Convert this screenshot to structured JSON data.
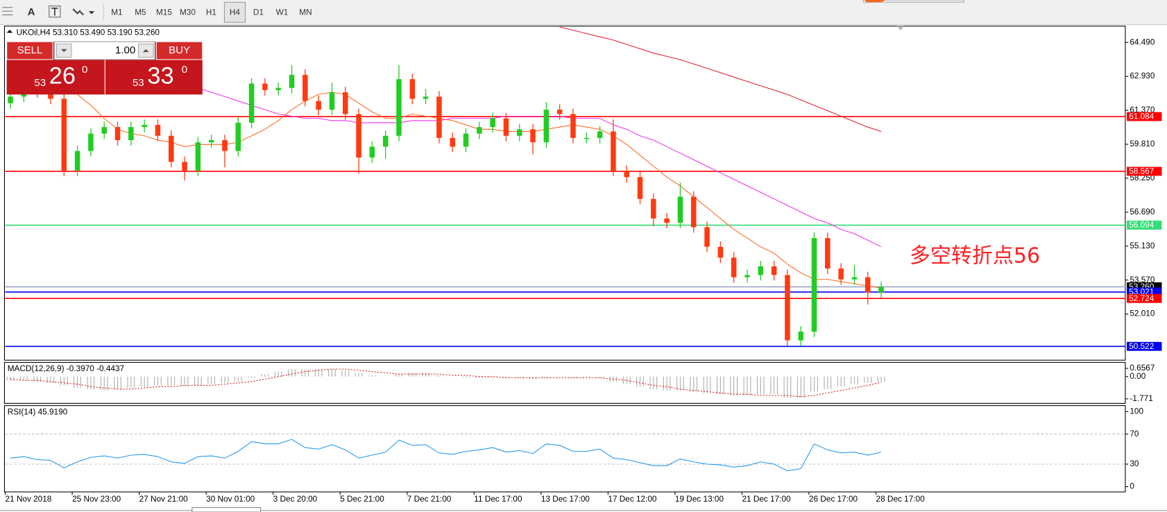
{
  "toolbar": {
    "tool_text": "A",
    "timeframes": [
      "M1",
      "M5",
      "M15",
      "M30",
      "H1",
      "H4",
      "D1",
      "W1",
      "MN"
    ],
    "active": "H4"
  },
  "chart": {
    "title": "UKOil,H4  53.310 53.490 53.190 53.260",
    "trade_panel": {
      "sell": "SELL",
      "buy": "BUY",
      "volume": "1.00",
      "sell_price": {
        "big": "53",
        "main": "26",
        "sup": "0"
      },
      "buy_price": {
        "big": "53",
        "main": "33",
        "sup": "0"
      }
    },
    "up_color": "#22cc22",
    "down_color": "#ff3a10",
    "ylim": [
      50.4,
      65.21
    ],
    "yticks": [
      {
        "value": 64.49,
        "label": "64.490"
      },
      {
        "value": 62.93,
        "label": "62.930"
      },
      {
        "value": 61.37,
        "label": "61.370"
      },
      {
        "value": 59.81,
        "label": "59.810"
      },
      {
        "value": 58.25,
        "label": "58.250"
      },
      {
        "value": 56.69,
        "label": "56.690"
      },
      {
        "value": 55.13,
        "label": "55.130"
      },
      {
        "value": 53.57,
        "label": "53.570"
      },
      {
        "value": 52.01,
        "label": "52.010"
      }
    ],
    "levels": [
      {
        "value": 61.084,
        "label": "61.084",
        "color": "#ff0000"
      },
      {
        "value": 58.567,
        "label": "58.567",
        "color": "#ff0000"
      },
      {
        "value": 56.094,
        "label": "56.094",
        "color": "#33dd77"
      },
      {
        "value": 53.26,
        "label": "53.260",
        "color": "#000000"
      },
      {
        "value": 53.021,
        "label": "53.021",
        "color": "#0000ee"
      },
      {
        "value": 52.724,
        "label": "52.724",
        "color": "#ff0000"
      },
      {
        "value": 50.522,
        "label": "50.522",
        "color": "#0000ee"
      }
    ],
    "annotation": "多空转折点56",
    "candles": [
      [
        61.7,
        62.25,
        61.45,
        62.0
      ],
      [
        62.0,
        62.55,
        61.75,
        62.3
      ],
      [
        62.3,
        62.55,
        61.95,
        62.2
      ],
      [
        62.2,
        62.45,
        61.65,
        61.9
      ],
      [
        61.9,
        62.15,
        58.35,
        58.6
      ],
      [
        58.6,
        59.75,
        58.35,
        59.5
      ],
      [
        59.5,
        60.55,
        59.25,
        60.3
      ],
      [
        60.3,
        60.85,
        60.05,
        60.6
      ],
      [
        60.6,
        60.85,
        59.75,
        60.0
      ],
      [
        60.0,
        60.85,
        59.75,
        60.6
      ],
      [
        60.6,
        60.95,
        60.35,
        60.7
      ],
      [
        60.7,
        60.95,
        59.95,
        60.2
      ],
      [
        60.2,
        60.45,
        58.75,
        59.0
      ],
      [
        59.0,
        59.25,
        58.15,
        58.6
      ],
      [
        58.6,
        60.15,
        58.35,
        59.9
      ],
      [
        59.9,
        60.25,
        59.65,
        60.0
      ],
      [
        60.0,
        60.25,
        58.75,
        59.5
      ],
      [
        59.5,
        61.05,
        59.25,
        60.8
      ],
      [
        60.8,
        62.85,
        60.55,
        62.6
      ],
      [
        62.6,
        62.85,
        62.05,
        62.3
      ],
      [
        62.3,
        62.65,
        62.05,
        62.4
      ],
      [
        62.4,
        63.45,
        62.15,
        63.0
      ],
      [
        63.0,
        63.25,
        61.55,
        61.8
      ],
      [
        61.8,
        62.05,
        61.15,
        61.4
      ],
      [
        61.4,
        62.65,
        61.15,
        62.2
      ],
      [
        62.2,
        62.45,
        60.95,
        61.2
      ],
      [
        61.2,
        61.45,
        58.45,
        59.2
      ],
      [
        59.2,
        59.95,
        58.95,
        59.7
      ],
      [
        59.7,
        60.45,
        59.15,
        60.2
      ],
      [
        60.2,
        63.45,
        59.95,
        62.8
      ],
      [
        62.8,
        63.05,
        61.65,
        61.9
      ],
      [
        61.9,
        62.35,
        61.65,
        62.0
      ],
      [
        62.0,
        62.25,
        59.85,
        60.1
      ],
      [
        60.1,
        60.35,
        59.45,
        59.7
      ],
      [
        59.7,
        60.55,
        59.45,
        60.3
      ],
      [
        60.3,
        60.85,
        60.05,
        60.6
      ],
      [
        60.6,
        61.25,
        60.35,
        61.0
      ],
      [
        61.0,
        61.25,
        59.95,
        60.2
      ],
      [
        60.2,
        60.75,
        59.95,
        60.5
      ],
      [
        60.5,
        60.75,
        59.35,
        59.9
      ],
      [
        59.9,
        61.75,
        59.65,
        61.4
      ],
      [
        61.4,
        61.65,
        60.95,
        61.2
      ],
      [
        61.2,
        61.45,
        59.85,
        60.1
      ],
      [
        60.1,
        60.35,
        59.85,
        60.1
      ],
      [
        60.1,
        60.65,
        59.85,
        60.4
      ],
      [
        60.4,
        60.95,
        58.35,
        58.6
      ],
      [
        58.6,
        58.85,
        58.05,
        58.3
      ],
      [
        58.3,
        58.55,
        57.05,
        57.3
      ],
      [
        57.3,
        57.55,
        56.05,
        56.4
      ],
      [
        56.4,
        56.65,
        55.95,
        56.2
      ],
      [
        56.2,
        58.05,
        55.95,
        57.4
      ],
      [
        57.4,
        57.65,
        55.75,
        56.0
      ],
      [
        56.0,
        56.25,
        54.85,
        55.1
      ],
      [
        55.1,
        55.35,
        54.35,
        54.6
      ],
      [
        54.6,
        54.85,
        53.45,
        53.7
      ],
      [
        53.7,
        54.05,
        53.45,
        53.8
      ],
      [
        53.8,
        54.45,
        53.55,
        54.2
      ],
      [
        54.2,
        54.45,
        53.55,
        53.8
      ],
      [
        53.8,
        54.05,
        50.55,
        50.8
      ],
      [
        50.8,
        51.45,
        50.55,
        51.2
      ],
      [
        51.2,
        55.75,
        50.95,
        55.5
      ],
      [
        55.5,
        55.75,
        53.85,
        54.1
      ],
      [
        54.1,
        54.35,
        53.35,
        53.6
      ],
      [
        53.6,
        54.25,
        53.35,
        53.7
      ],
      [
        53.7,
        53.95,
        52.45,
        53.0
      ],
      [
        53.0,
        53.49,
        52.75,
        53.26
      ]
    ],
    "moving_averages": [
      {
        "color": "#ff6a20",
        "values": [
          null,
          null,
          null,
          null,
          null,
          62.1,
          61.6,
          61.0,
          60.5,
          60.3,
          60.2,
          60.0,
          59.9,
          59.7,
          59.8,
          59.8,
          59.8,
          59.9,
          60.2,
          60.5,
          60.9,
          61.4,
          61.8,
          62.1,
          62.2,
          62.1,
          61.7,
          61.3,
          61.0,
          61.0,
          61.2,
          61.1,
          61.0,
          60.9,
          60.7,
          60.5,
          60.5,
          60.4,
          60.4,
          60.4,
          60.5,
          60.6,
          60.7,
          60.6,
          60.5,
          60.2,
          59.8,
          59.3,
          58.8,
          58.3,
          57.9,
          57.4,
          56.9,
          56.4,
          55.9,
          55.5,
          55.1,
          54.8,
          54.3,
          53.9,
          53.6,
          53.6,
          53.5,
          53.4,
          53.3,
          53.2
        ]
      },
      {
        "color": "#ee33ee",
        "values": [
          null,
          null,
          null,
          null,
          null,
          null,
          null,
          null,
          null,
          null,
          null,
          null,
          null,
          null,
          62.4,
          62.2,
          62.0,
          61.8,
          61.6,
          61.4,
          61.2,
          61.1,
          61.0,
          61.0,
          60.9,
          60.9,
          60.8,
          60.8,
          60.8,
          60.8,
          60.9,
          60.9,
          60.9,
          61.0,
          61.0,
          61.0,
          61.0,
          61.1,
          61.1,
          61.1,
          61.1,
          61.1,
          61.0,
          61.0,
          61.0,
          60.7,
          60.5,
          60.2,
          60.0,
          59.7,
          59.4,
          59.1,
          58.8,
          58.5,
          58.2,
          57.9,
          57.6,
          57.3,
          57.0,
          56.7,
          56.4,
          56.2,
          55.9,
          55.7,
          55.4,
          55.1
        ]
      },
      {
        "color": "#dd2233",
        "values": [
          null,
          null,
          null,
          null,
          null,
          null,
          null,
          null,
          null,
          null,
          null,
          null,
          null,
          null,
          null,
          null,
          null,
          null,
          null,
          null,
          null,
          null,
          null,
          null,
          null,
          null,
          null,
          null,
          null,
          null,
          null,
          null,
          null,
          null,
          null,
          null,
          null,
          null,
          null,
          null,
          null,
          65.2,
          65.05,
          64.9,
          64.75,
          64.6,
          64.4,
          64.2,
          64.0,
          63.85,
          63.7,
          63.5,
          63.3,
          63.1,
          62.9,
          62.7,
          62.5,
          62.3,
          62.1,
          61.85,
          61.6,
          61.35,
          61.1,
          60.85,
          60.6,
          60.4
        ]
      }
    ],
    "x_labels": [
      "21 Nov 2018",
      "25 Nov 23:00",
      "27 Nov 21:00",
      "30 Nov 01:00",
      "3 Dec 20:00",
      "5 Dec 21:00",
      "7 Dec 21:00",
      "11 Dec 17:00",
      "13 Dec 17:00",
      "17 Dec 12:00",
      "19 Dec 13:00",
      "21 Dec 17:00",
      "26 Dec 17:00",
      "28 Dec 17:00"
    ]
  },
  "macd": {
    "label": "MACD(12,26,9) -0.3970 -0.4437",
    "ylim": [
      -2.07,
      1.07
    ],
    "yticks": [
      0.6567,
      {
        "value": 0,
        "label": "0.00"
      },
      -1.771
    ],
    "histogram_color": "#aaaaaa",
    "signal_color": "#dd2222",
    "histogram": [
      -0.3,
      -0.3,
      -0.4,
      -0.5,
      -0.7,
      -0.9,
      -1.0,
      -1.1,
      -1.0,
      -0.9,
      -0.8,
      -0.7,
      -0.7,
      -0.8,
      -0.7,
      -0.6,
      -0.5,
      -0.4,
      -0.1,
      0.2,
      0.4,
      0.6,
      0.6,
      0.6,
      0.6,
      0.5,
      0.3,
      0.1,
      0.0,
      0.2,
      0.3,
      0.3,
      0.1,
      0.0,
      -0.1,
      -0.1,
      -0.1,
      -0.1,
      -0.1,
      -0.2,
      -0.1,
      0.0,
      -0.1,
      -0.1,
      -0.1,
      -0.4,
      -0.6,
      -0.8,
      -1.0,
      -1.1,
      -1.1,
      -1.2,
      -1.3,
      -1.4,
      -1.5,
      -1.5,
      -1.4,
      -1.4,
      -1.7,
      -1.7,
      -1.2,
      -1.0,
      -0.8,
      -0.6,
      -0.5,
      -0.397
    ],
    "signal": [
      -0.2,
      -0.3,
      -0.3,
      -0.4,
      -0.5,
      -0.6,
      -0.8,
      -0.9,
      -1.0,
      -1.0,
      -0.9,
      -0.8,
      -0.8,
      -0.7,
      -0.7,
      -0.7,
      -0.6,
      -0.5,
      -0.4,
      -0.2,
      0.0,
      0.2,
      0.4,
      0.5,
      0.6,
      0.6,
      0.5,
      0.4,
      0.3,
      0.2,
      0.2,
      0.2,
      0.2,
      0.1,
      0.1,
      0.0,
      0.0,
      -0.1,
      -0.1,
      -0.1,
      -0.1,
      -0.1,
      -0.1,
      -0.1,
      -0.1,
      -0.2,
      -0.3,
      -0.5,
      -0.7,
      -0.8,
      -1.0,
      -1.1,
      -1.2,
      -1.3,
      -1.4,
      -1.4,
      -1.5,
      -1.5,
      -1.5,
      -1.6,
      -1.5,
      -1.3,
      -1.1,
      -0.9,
      -0.7,
      -0.4437
    ]
  },
  "rsi": {
    "label": "RSI(14) 45.9190",
    "ylim": [
      -7,
      107
    ],
    "yticks": [
      100,
      70,
      30,
      0
    ],
    "levels": [
      70,
      30
    ],
    "color": "#2299ee",
    "values": [
      38,
      40,
      36,
      35,
      25,
      33,
      39,
      41,
      38,
      42,
      43,
      40,
      33,
      31,
      40,
      41,
      38,
      47,
      60,
      57,
      57,
      63,
      52,
      50,
      56,
      49,
      38,
      42,
      46,
      62,
      55,
      56,
      45,
      43,
      47,
      49,
      52,
      46,
      48,
      44,
      57,
      55,
      47,
      47,
      50,
      38,
      36,
      32,
      28,
      28,
      37,
      33,
      30,
      29,
      26,
      28,
      33,
      30,
      21,
      24,
      57,
      49,
      45,
      46,
      42,
      45.919
    ]
  }
}
